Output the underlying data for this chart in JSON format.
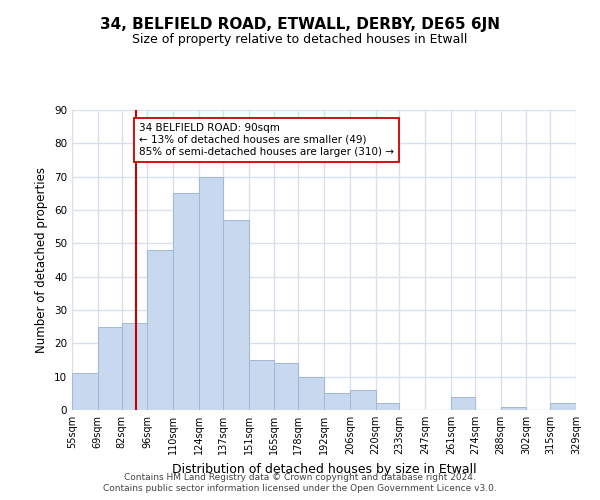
{
  "title": "34, BELFIELD ROAD, ETWALL, DERBY, DE65 6JN",
  "subtitle": "Size of property relative to detached houses in Etwall",
  "xlabel": "Distribution of detached houses by size in Etwall",
  "ylabel": "Number of detached properties",
  "bins": [
    55,
    69,
    82,
    96,
    110,
    124,
    137,
    151,
    165,
    178,
    192,
    206,
    220,
    233,
    247,
    261,
    274,
    288,
    302,
    315,
    329
  ],
  "bin_labels": [
    "55sqm",
    "69sqm",
    "82sqm",
    "96sqm",
    "110sqm",
    "124sqm",
    "137sqm",
    "151sqm",
    "165sqm",
    "178sqm",
    "192sqm",
    "206sqm",
    "220sqm",
    "233sqm",
    "247sqm",
    "261sqm",
    "274sqm",
    "288sqm",
    "302sqm",
    "315sqm",
    "329sqm"
  ],
  "counts": [
    11,
    25,
    26,
    48,
    65,
    70,
    57,
    15,
    14,
    10,
    5,
    6,
    2,
    0,
    0,
    4,
    0,
    1,
    0,
    2
  ],
  "bar_color": "#c8d8ee",
  "bar_edge_color": "#a0b8d8",
  "vline_x": 90,
  "vline_color": "#cc0000",
  "annotation_text": "34 BELFIELD ROAD: 90sqm\n← 13% of detached houses are smaller (49)\n85% of semi-detached houses are larger (310) →",
  "annotation_box_edge": "#cc0000",
  "annotation_box_face": "white",
  "ylim": [
    0,
    90
  ],
  "yticks": [
    0,
    10,
    20,
    30,
    40,
    50,
    60,
    70,
    80,
    90
  ],
  "footer1": "Contains HM Land Registry data © Crown copyright and database right 2024.",
  "footer2": "Contains public sector information licensed under the Open Government Licence v3.0.",
  "background_color": "white",
  "grid_color": "#d8e0ec"
}
